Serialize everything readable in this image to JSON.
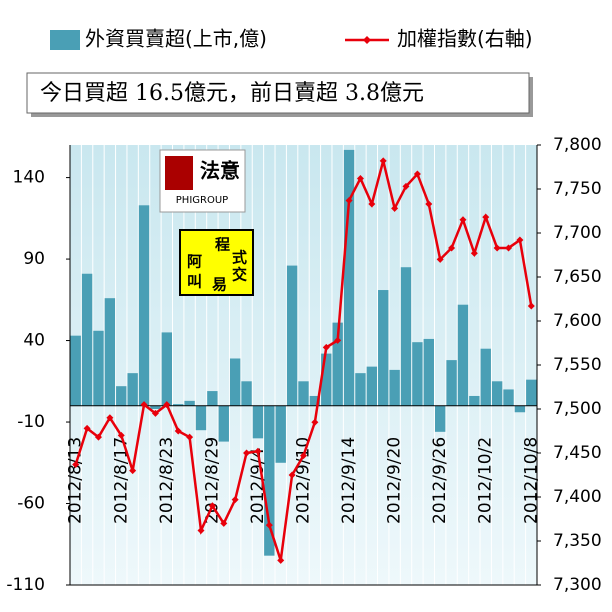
{
  "chart_data": {
    "type": "combo",
    "banner": "今日買超 16.5億元，前日賣超 3.8億元",
    "annotations": [
      "法意",
      "PHIGROUP",
      "程",
      "式",
      "阿",
      "交",
      "叫",
      "易"
    ],
    "categories": [
      "2012/8/13",
      null,
      null,
      null,
      "2012/8/17",
      null,
      null,
      null,
      "2012/8/23",
      null,
      null,
      null,
      "2012/8/29",
      null,
      null,
      null,
      "2012/9/4",
      null,
      null,
      null,
      "2012/9/10",
      null,
      null,
      null,
      "2012/9/14",
      null,
      null,
      null,
      "2012/9/20",
      null,
      null,
      null,
      "2012/9/26",
      null,
      null,
      null,
      "2012/10/2",
      null,
      null,
      null,
      "2012/10/8"
    ],
    "series": [
      {
        "name": "外資買賣超(上市,億)",
        "type": "bar",
        "axis": "y",
        "color": "#4a9fb5",
        "values": [
          43,
          81,
          46,
          66,
          12,
          20,
          123,
          -2,
          45,
          1,
          3,
          -15,
          9,
          -22,
          29,
          15,
          -20,
          -92,
          -35,
          86,
          15,
          6,
          32,
          51,
          157,
          20,
          24,
          71,
          22,
          85,
          39,
          41,
          -16,
          28,
          62,
          6,
          35,
          15,
          10,
          -4,
          16
        ]
      },
      {
        "name": "加權指數(右軸)",
        "type": "line",
        "axis": "y2",
        "color": "#e8000b",
        "values": [
          7437,
          7478,
          7468,
          7490,
          7470,
          7430,
          7505,
          7495,
          7505,
          7475,
          7468,
          7362,
          7390,
          7370,
          7397,
          7450,
          7452,
          7368,
          7328,
          7425,
          7447,
          7485,
          7570,
          7578,
          7737,
          7762,
          7733,
          7782,
          7728,
          7753,
          7767,
          7733,
          7670,
          7683,
          7715,
          7677,
          7718,
          7683,
          7683,
          7692,
          7617
        ]
      }
    ],
    "ylim": [
      -110,
      160
    ],
    "yticks": [
      -110,
      -60,
      -10,
      40,
      90,
      140
    ],
    "y2lim": [
      7300,
      7800
    ],
    "y2ticks": [
      {
        "value": 7300,
        "label": "7,300"
      },
      {
        "value": 7350,
        "label": "7,350"
      },
      {
        "value": 7400,
        "label": "7,400"
      },
      {
        "value": 7450,
        "label": "7,450"
      },
      {
        "value": 7500,
        "label": "7,500"
      },
      {
        "value": 7550,
        "label": "7,550"
      },
      {
        "value": 7600,
        "label": "7,600"
      },
      {
        "value": 7650,
        "label": "7,650"
      },
      {
        "value": 7700,
        "label": "7,700"
      },
      {
        "value": 7750,
        "label": "7,750"
      },
      {
        "value": 7800,
        "label": "7,800"
      }
    ],
    "grid": true
  }
}
